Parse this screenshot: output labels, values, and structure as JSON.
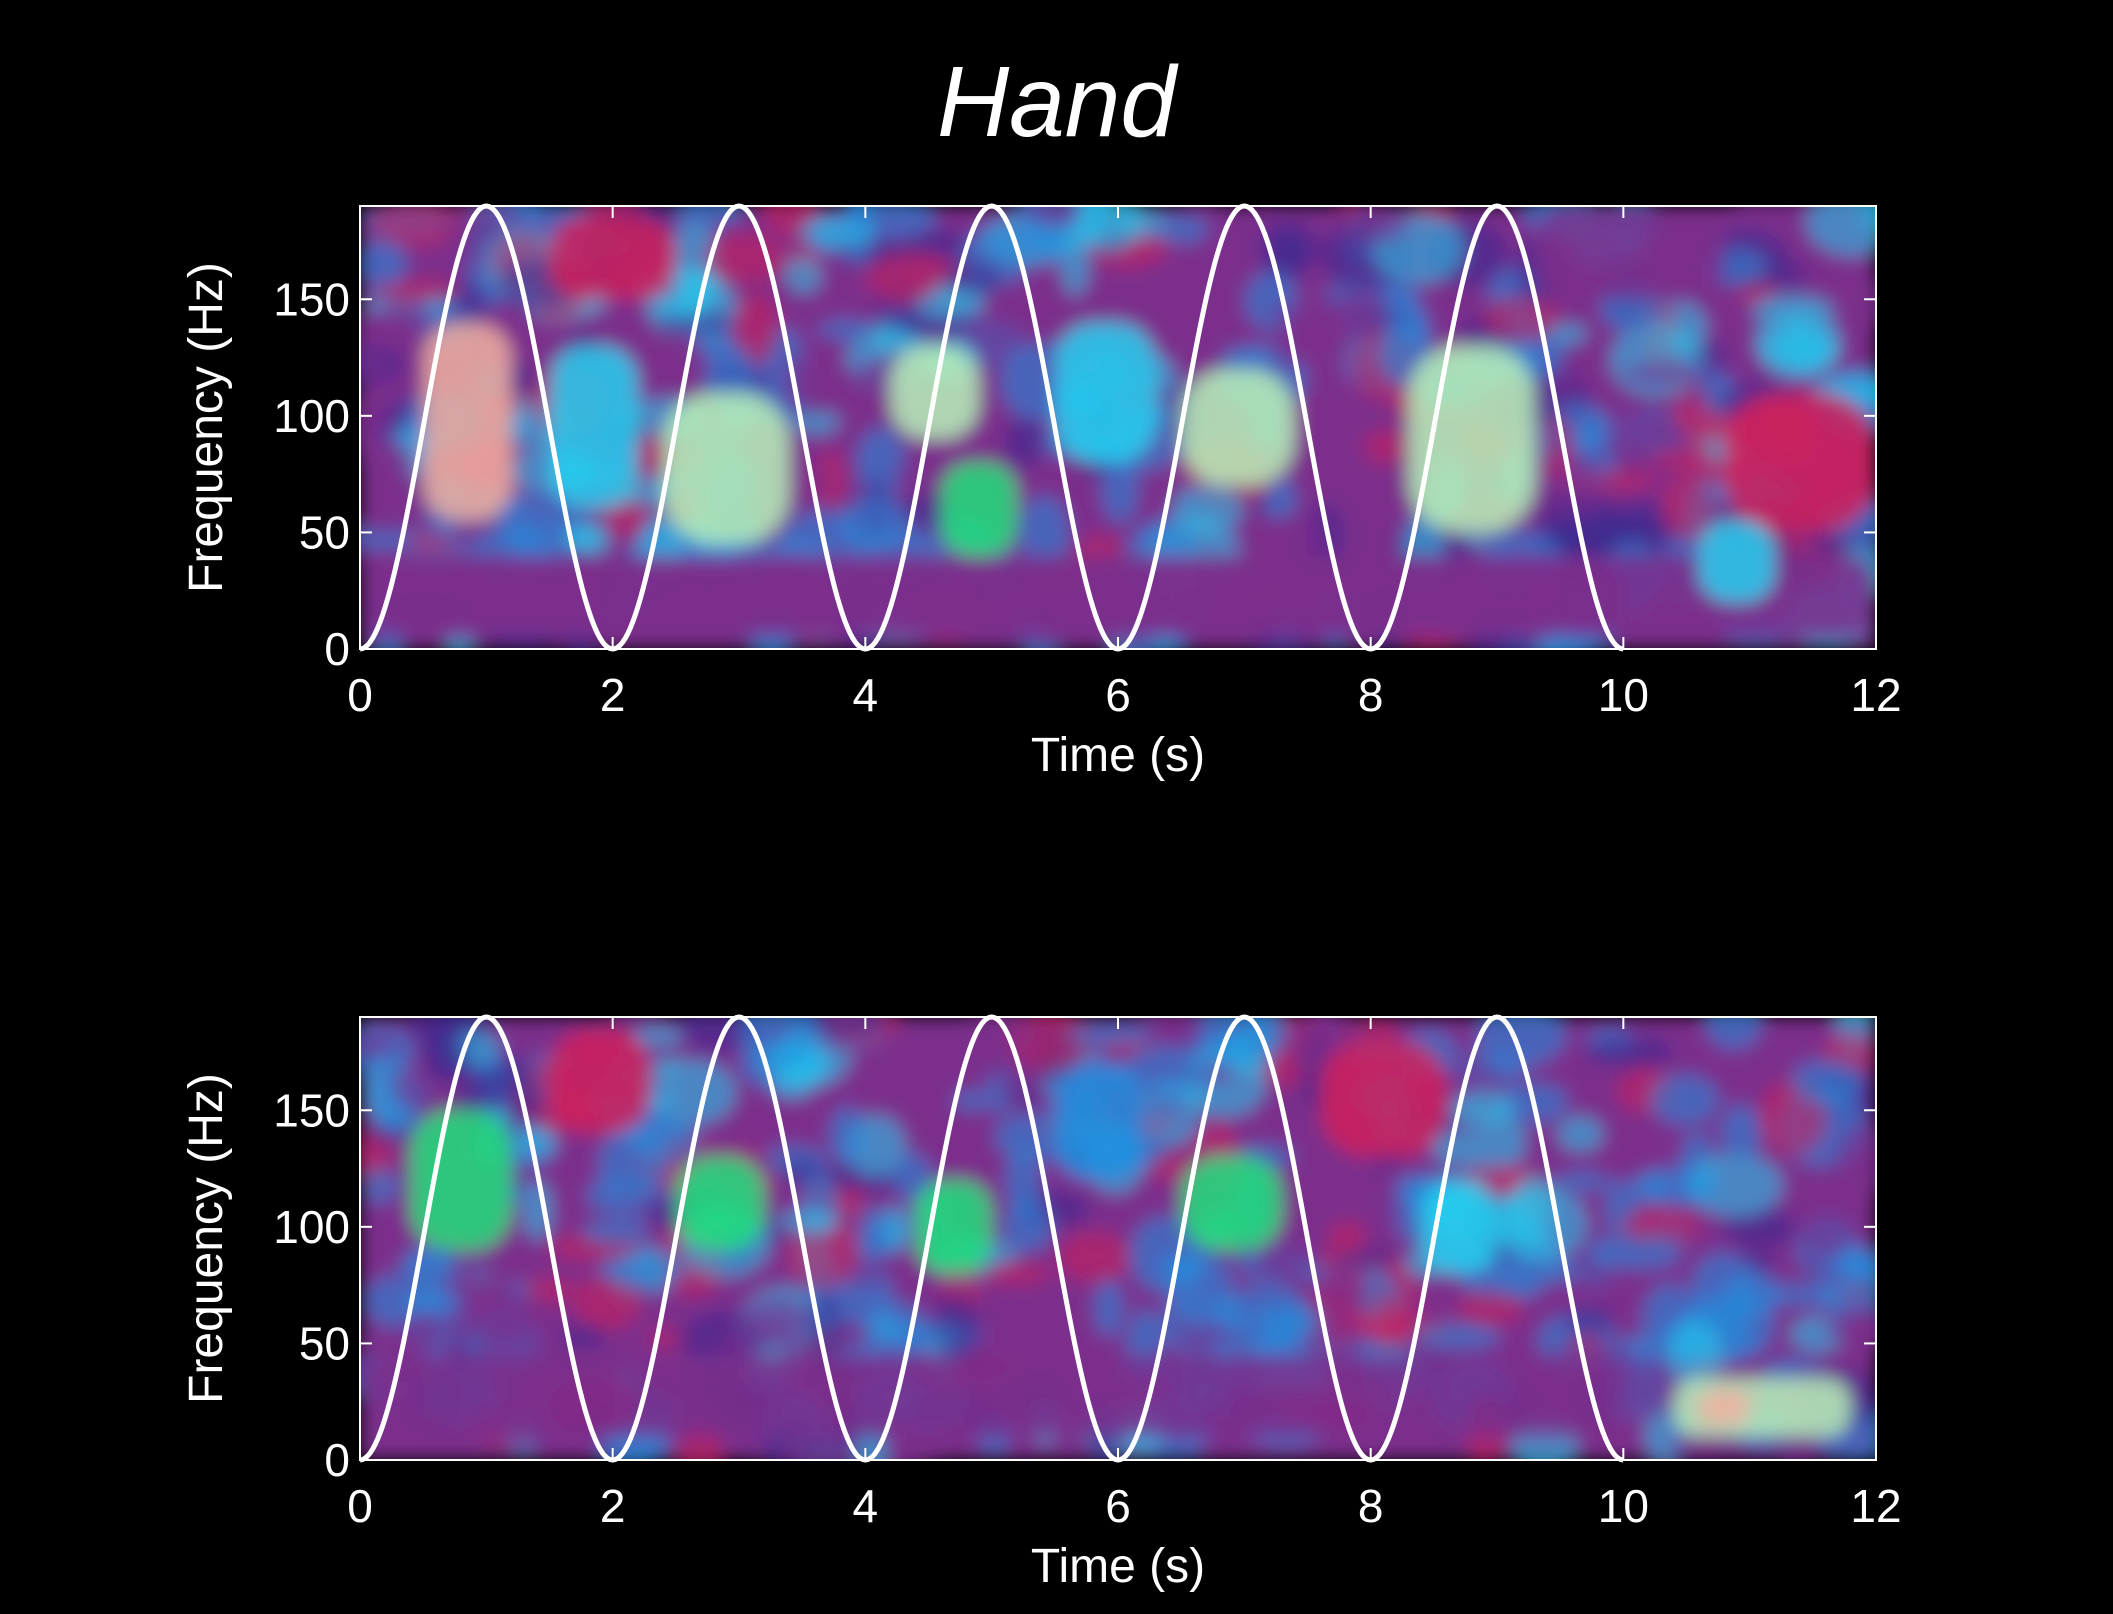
{
  "figure": {
    "title": "Hand"
  },
  "colors": {
    "background": "#000000",
    "text": "#ffffff",
    "overlay": "#ffffff",
    "colormap": [
      "#3a2a8f",
      "#7b2e8c",
      "#d0205a",
      "#e8505e",
      "#1f8fe0",
      "#25d0f0",
      "#22e07a",
      "#b8f2b8",
      "#f0b0a0"
    ]
  },
  "chart_data": [
    {
      "type": "heatmap",
      "title": "",
      "xlabel": "Time (s)",
      "ylabel": "Frequency (Hz)",
      "xlim": [
        0,
        12
      ],
      "ylim": [
        0,
        190
      ],
      "xticks": [
        0,
        2,
        4,
        6,
        8,
        10,
        12
      ],
      "yticks": [
        0,
        50,
        100,
        150
      ],
      "grid": false,
      "overlay": {
        "name": "",
        "type": "line",
        "function": "raised cosine",
        "period_s": 2,
        "peaks_s": [
          1,
          3,
          5,
          7,
          9
        ],
        "x_range": [
          0,
          10
        ],
        "y_range": [
          0,
          190
        ]
      },
      "regions": [
        {
          "t": [
            0.0,
            0.4
          ],
          "f": [
            50,
            90
          ],
          "level": 0.1
        },
        {
          "t": [
            0.0,
            12.0
          ],
          "f": [
            5,
            40
          ],
          "level": 0.1
        },
        {
          "t": [
            0.2,
            10.0
          ],
          "f": [
            8,
            38
          ],
          "level": 0.15
        },
        {
          "t": [
            0.5,
            1.2
          ],
          "f": [
            55,
            140
          ],
          "level": 0.95
        },
        {
          "t": [
            2.4,
            3.4
          ],
          "f": [
            45,
            110
          ],
          "level": 0.85
        },
        {
          "t": [
            4.2,
            4.9
          ],
          "f": [
            90,
            130
          ],
          "level": 0.88
        },
        {
          "t": [
            4.6,
            5.2
          ],
          "f": [
            40,
            80
          ],
          "level": 0.75
        },
        {
          "t": [
            6.5,
            7.4
          ],
          "f": [
            70,
            120
          ],
          "level": 0.9
        },
        {
          "t": [
            8.3,
            9.3
          ],
          "f": [
            50,
            130
          ],
          "level": 0.85
        },
        {
          "t": [
            1.5,
            2.2
          ],
          "f": [
            60,
            130
          ],
          "level": 0.6
        },
        {
          "t": [
            5.5,
            6.3
          ],
          "f": [
            80,
            140
          ],
          "level": 0.6
        },
        {
          "t": [
            10.8,
            12.0
          ],
          "f": [
            50,
            110
          ],
          "level": 0.2
        },
        {
          "t": [
            10.6,
            11.2
          ],
          "f": [
            20,
            55
          ],
          "level": 0.65
        },
        {
          "t": [
            1.5,
            2.5
          ],
          "f": [
            150,
            185
          ],
          "level": 0.2
        },
        {
          "t": [
            9.3,
            10.8
          ],
          "f": [
            150,
            190
          ],
          "level": 0.15
        }
      ]
    },
    {
      "type": "heatmap",
      "title": "",
      "xlabel": "Time (s)",
      "ylabel": "Frequency (Hz)",
      "xlim": [
        0,
        12
      ],
      "ylim": [
        0,
        190
      ],
      "xticks": [
        0,
        2,
        4,
        6,
        8,
        10,
        12
      ],
      "yticks": [
        0,
        50,
        100,
        150
      ],
      "grid": false,
      "overlay": {
        "name": "",
        "type": "line",
        "function": "raised cosine",
        "period_s": 2,
        "peaks_s": [
          1,
          3,
          5,
          7,
          9
        ],
        "x_range": [
          0,
          10
        ],
        "y_range": [
          0,
          190
        ]
      },
      "regions": [
        {
          "t": [
            0.0,
            10.0
          ],
          "f": [
            10,
            45
          ],
          "level": 0.12
        },
        {
          "t": [
            0.4,
            1.2
          ],
          "f": [
            90,
            150
          ],
          "level": 0.8
        },
        {
          "t": [
            2.5,
            3.2
          ],
          "f": [
            90,
            130
          ],
          "level": 0.7
        },
        {
          "t": [
            4.4,
            5.0
          ],
          "f": [
            80,
            120
          ],
          "level": 0.7
        },
        {
          "t": [
            6.5,
            7.3
          ],
          "f": [
            90,
            130
          ],
          "level": 0.75
        },
        {
          "t": [
            8.4,
            9.0
          ],
          "f": [
            80,
            120
          ],
          "level": 0.6
        },
        {
          "t": [
            10.4,
            11.8
          ],
          "f": [
            10,
            35
          ],
          "level": 0.85
        },
        {
          "t": [
            10.6,
            11.0
          ],
          "f": [
            15,
            30
          ],
          "level": 0.95
        },
        {
          "t": [
            5.5,
            6.2
          ],
          "f": [
            120,
            170
          ],
          "level": 0.55
        },
        {
          "t": [
            1.5,
            2.3
          ],
          "f": [
            140,
            185
          ],
          "level": 0.2
        },
        {
          "t": [
            7.6,
            8.6
          ],
          "f": [
            130,
            180
          ],
          "level": 0.25
        }
      ]
    }
  ]
}
